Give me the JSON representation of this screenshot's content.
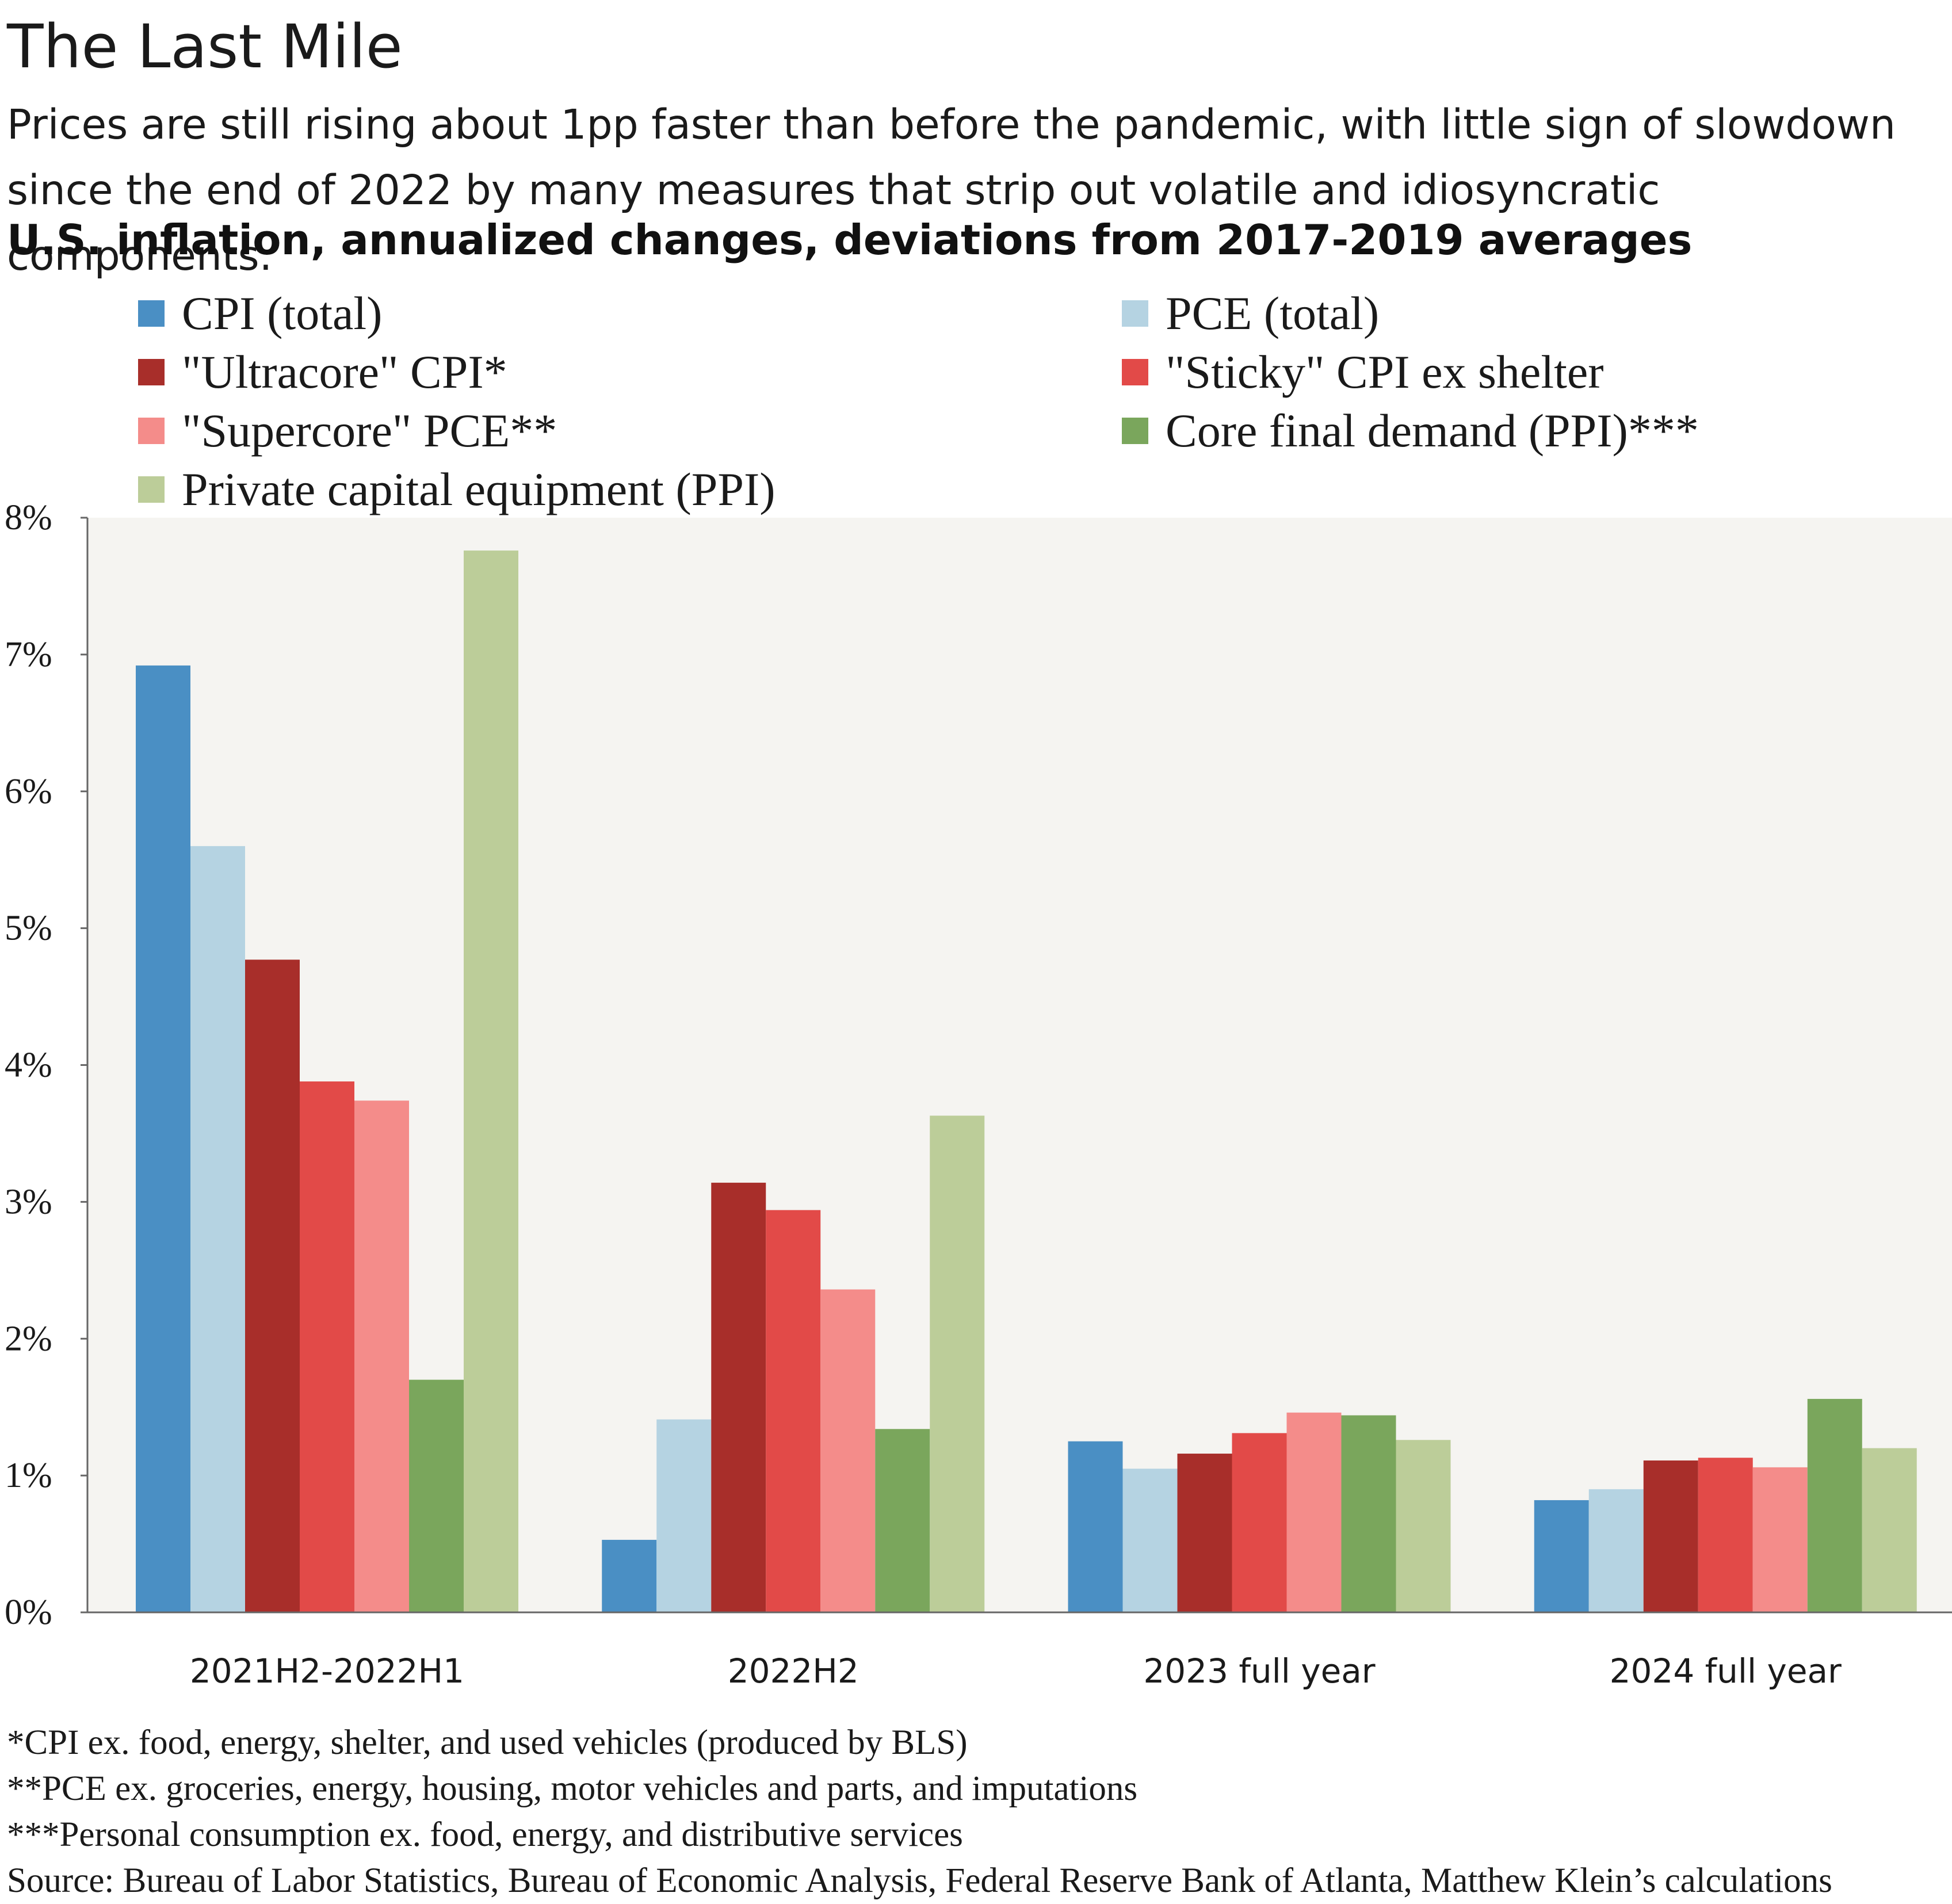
{
  "title": "The Last Mile",
  "subtitle": "Prices are still rising about 1pp faster than before the pandemic, with little sign of slowdown since the end of 2022 by many measures that strip out volatile and idiosyncratic components.",
  "chart_heading": "U.S. inflation, annualized changes, deviations from 2017-2019 averages",
  "chart_data": {
    "type": "bar",
    "title": "U.S. inflation, annualized changes, deviations from 2017-2019 averages",
    "categories": [
      "2021H2-2022H1",
      "2022H2",
      "2023 full year",
      "2024 full year"
    ],
    "series": [
      {
        "name": "CPI (total)",
        "color": "#4a8fc4",
        "values": [
          6.92,
          0.53,
          1.25,
          0.82
        ]
      },
      {
        "name": "PCE (total)",
        "color": "#b5d3e2",
        "values": [
          5.6,
          1.41,
          1.05,
          0.9
        ]
      },
      {
        "name": "\"Ultracore\" CPI*",
        "color": "#a82e2a",
        "values": [
          4.77,
          3.14,
          1.16,
          1.11
        ]
      },
      {
        "name": "\"Sticky\" CPI ex shelter",
        "color": "#e24a48",
        "values": [
          3.88,
          2.94,
          1.31,
          1.13
        ]
      },
      {
        "name": "\"Supercore\" PCE**",
        "color": "#f48c8a",
        "values": [
          3.74,
          2.36,
          1.46,
          1.06
        ]
      },
      {
        "name": "Core final demand (PPI)***",
        "color": "#7aa65c",
        "values": [
          1.7,
          1.34,
          1.44,
          1.56
        ]
      },
      {
        "name": "Private capital equipment (PPI)",
        "color": "#bccd99",
        "values": [
          7.76,
          3.63,
          1.26,
          1.2
        ]
      }
    ],
    "y_ticks": [
      "0%",
      "1%",
      "2%",
      "3%",
      "4%",
      "5%",
      "6%",
      "7%",
      "8%"
    ],
    "ylim": [
      0,
      8
    ],
    "xlabel": "",
    "ylabel": "",
    "grid": false,
    "legend_position": "top",
    "plot_background": "#f5f4f1"
  },
  "footnotes": {
    "note1": "*CPI ex. food, energy, shelter, and used vehicles (produced by BLS)",
    "note2": "**PCE ex. groceries, energy, housing, motor vehicles and parts, and imputations",
    "note3": "***Personal consumption ex. food, energy, and distributive services",
    "source": "Source: Bureau of Labor Statistics, Bureau of Economic Analysis, Federal Reserve Bank of Atlanta, Matthew Klein’s calculations"
  }
}
